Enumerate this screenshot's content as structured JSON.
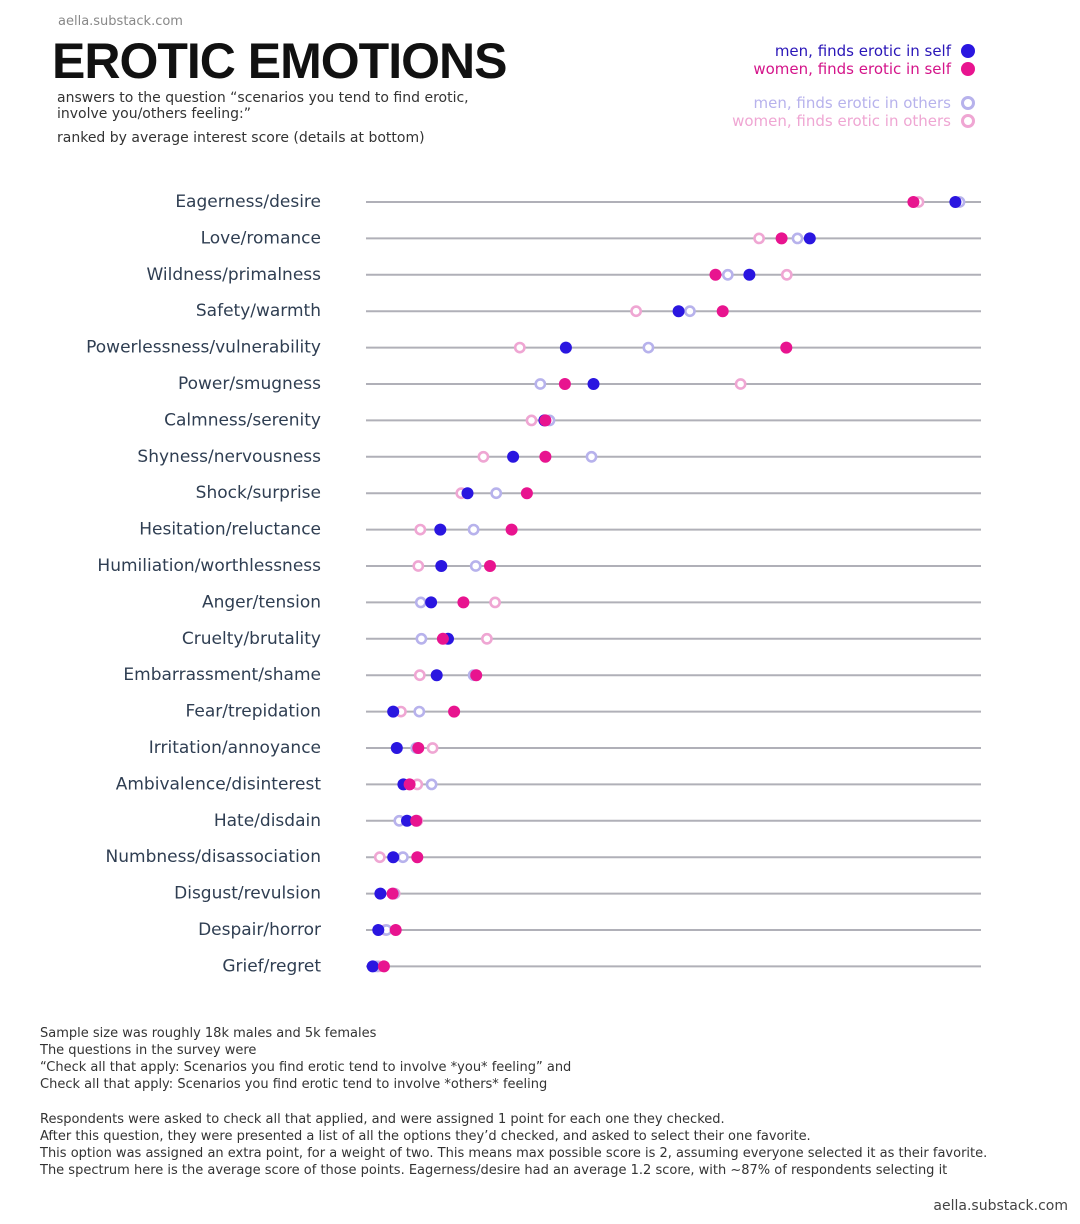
{
  "header": {
    "source": "aella.substack.com",
    "title": "EROTIC EMOTIONS",
    "subtitle": "answers to the question “scenarios you tend to find erotic, involve you/others feeling:”",
    "ranked_note": "ranked by average interest score  (details at bottom)"
  },
  "legend": [
    {
      "label": "men, finds erotic in self",
      "color": "#2a16e0",
      "text_color": "#2a16b8",
      "style": "filled"
    },
    {
      "label": "women, finds erotic in self",
      "color": "#e8148f",
      "text_color": "#d4148a",
      "style": "filled"
    },
    {
      "label": "men, finds erotic in others",
      "color": "#b7b2ec",
      "text_color": "#b7b2ec",
      "style": "hollow"
    },
    {
      "label": "women, finds erotic in others",
      "color": "#efa6d3",
      "text_color": "#efa6d3",
      "style": "hollow"
    }
  ],
  "chart_data": {
    "type": "scatter",
    "title": "EROTIC EMOTIONS",
    "categories": [
      "Eagerness/desire",
      "Love/romance",
      "Wildness/primalness",
      "Safety/warmth",
      "Powerlessness/vulnerability",
      "Power/smugness",
      "Calmness/serenity",
      "Shyness/nervousness",
      "Shock/surprise",
      "Hesitation/reluctance",
      "Humiliation/worthlessness",
      "Anger/tension",
      "Cruelty/brutality",
      "Embarrassment/shame",
      "Fear/trepidation",
      "Irritation/annoyance",
      "Ambivalence/disinterest",
      "Hate/disdain",
      "Numbness/disassociation",
      "Disgust/revulsion",
      "Despair/horror",
      "Grief/regret"
    ],
    "x_range": [
      0,
      1.2
    ],
    "series": [
      {
        "name": "men, finds erotic in self",
        "values": [
          1.15,
          0.866,
          0.748,
          0.61,
          0.39,
          0.444,
          0.348,
          0.287,
          0.198,
          0.145,
          0.147,
          0.127,
          0.16,
          0.138,
          0.053,
          0.06,
          0.073,
          0.08,
          0.053,
          0.028,
          0.024,
          0.013
        ]
      },
      {
        "name": "women, finds erotic in self",
        "values": [
          1.068,
          0.811,
          0.682,
          0.696,
          0.82,
          0.388,
          0.35,
          0.35,
          0.314,
          0.284,
          0.242,
          0.19,
          0.15,
          0.215,
          0.172,
          0.102,
          0.085,
          0.098,
          0.1,
          0.052,
          0.058,
          0.035
        ]
      },
      {
        "name": "men, finds erotic in others",
        "values": [
          1.158,
          0.842,
          0.706,
          0.632,
          0.551,
          0.34,
          0.358,
          0.44,
          0.254,
          0.21,
          0.214,
          0.107,
          0.108,
          0.21,
          0.104,
          0.098,
          0.128,
          0.065,
          0.072,
          0.054,
          0.04,
          0.02
        ]
      },
      {
        "name": "women, finds erotic in others",
        "values": [
          1.078,
          0.767,
          0.821,
          0.527,
          0.3,
          0.731,
          0.323,
          0.229,
          0.186,
          0.106,
          0.102,
          0.252,
          0.236,
          0.105,
          0.068,
          0.13,
          0.1,
          0.1,
          0.027,
          0.056,
          0.038,
          0.025
        ]
      }
    ],
    "grid": false
  },
  "notes": {
    "para1": [
      "Sample size was roughly 18k males and 5k females",
      "The questions in the survey were",
      "“Check all that apply: Scenarios you find erotic tend to involve *you* feeling” and",
      "Check all that apply: Scenarios you find erotic tend to involve *others* feeling"
    ],
    "para2": [
      "Respondents were asked to check all that applied, and were assigned 1 point for each one they checked.",
      "After this question, they were presented a list of all the options they’d checked, and asked to select their one favorite.",
      "This option was assigned an extra point, for a weight of two. This means max possible score is 2, assuming everyone selected it as their favorite.",
      "The spectrum here is the average score of those points. Eagerness/desire had an average 1.2 score, with ~87% of respondents selecting it"
    ]
  },
  "footer": {
    "source": "aella.substack.com"
  }
}
